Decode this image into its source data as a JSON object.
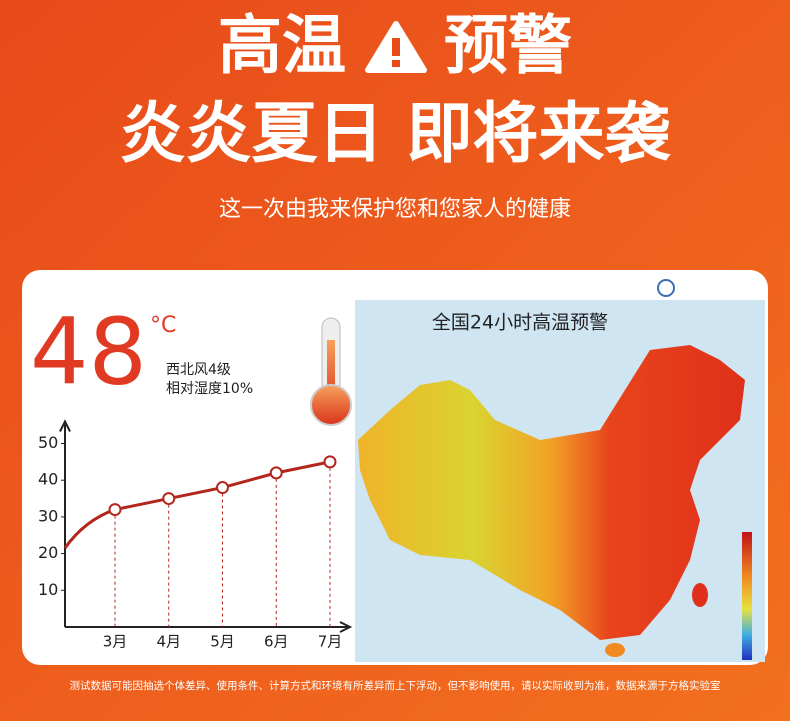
{
  "header": {
    "title_left": "高温",
    "title_right": "预警",
    "headline": "炎炎夏日 即将来袭",
    "subtitle": "这一次由我来保护您和您家人的健康"
  },
  "card": {
    "temperature": "48",
    "unit": "°C",
    "wind": "西北风4级",
    "humidity": "相对湿度10%",
    "map_title": "全国24小时高温预警"
  },
  "chart_data": {
    "type": "line",
    "categories": [
      "3月",
      "4月",
      "5月",
      "6月",
      "7月"
    ],
    "values": [
      32,
      35,
      38,
      42,
      45
    ],
    "color": "#b3261e",
    "ylim": [
      0,
      56
    ],
    "yticks": [
      10,
      20,
      30,
      40,
      50
    ]
  },
  "footer": {
    "note": "测试数据可能因抽选个体差异、使用条件、计算方式和环境有所差异而上下浮动，但不影响使用，请以实际收到为准，数据来源于方格实验室"
  }
}
